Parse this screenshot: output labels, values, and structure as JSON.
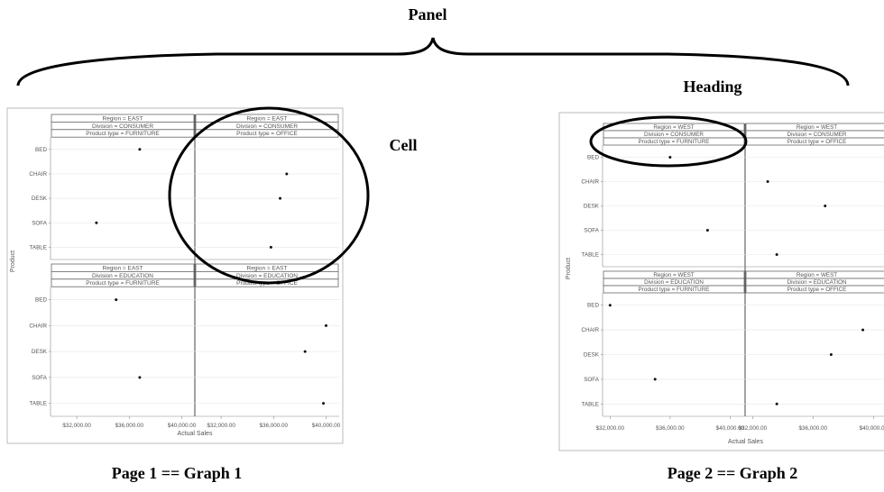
{
  "annotations": {
    "panel": "Panel",
    "heading": "Heading",
    "cell": "Cell",
    "caption1": "Page 1 == Graph 1",
    "caption2": "Page 2 == Graph 2"
  },
  "ylabel": "Product",
  "xlabel": "Actual Sales",
  "products": [
    "BED",
    "CHAIR",
    "DESK",
    "SOFA",
    "TABLE"
  ],
  "chart_data": [
    {
      "type": "scatter",
      "xlabel": "Actual Sales",
      "ylabel": "Product",
      "xticks": [
        "$32,000.00",
        "$36,000.00",
        "$40,000.00"
      ],
      "xlim": [
        30000,
        41000
      ],
      "cells": [
        {
          "header": [
            "Region = EAST",
            "Division = CONSUMER",
            "Product type = FURNITURE"
          ],
          "values": {
            "BED": 36800,
            "CHAIR": null,
            "DESK": null,
            "SOFA": 33500,
            "TABLE": null
          }
        },
        {
          "header": [
            "Region = EAST",
            "Division = CONSUMER",
            "Product type = OFFICE"
          ],
          "values": {
            "BED": null,
            "CHAIR": 37000,
            "DESK": 36500,
            "SOFA": null,
            "TABLE": 35800
          }
        },
        {
          "header": [
            "Region = EAST",
            "Division = EDUCATION",
            "Product type = FURNITURE"
          ],
          "values": {
            "BED": 35000,
            "CHAIR": null,
            "DESK": null,
            "SOFA": 36800,
            "TABLE": null
          }
        },
        {
          "header": [
            "Region = EAST",
            "Division = EDUCATION",
            "Product type = OFFICE"
          ],
          "values": {
            "BED": null,
            "CHAIR": 40000,
            "DESK": 38400,
            "SOFA": null,
            "TABLE": 39800
          }
        }
      ]
    },
    {
      "type": "scatter",
      "xlabel": "Actual Sales",
      "ylabel": "Product",
      "xticks": [
        "$32,000.00",
        "$36,000.00",
        "$40,000.00"
      ],
      "xlim": [
        31500,
        41000
      ],
      "cells": [
        {
          "header": [
            "Region = WEST",
            "Division = CONSUMER",
            "Product type = FURNITURE"
          ],
          "values": {
            "BED": 36000,
            "CHAIR": null,
            "DESK": null,
            "SOFA": 38500,
            "TABLE": null
          }
        },
        {
          "header": [
            "Region = WEST",
            "Division = CONSUMER",
            "Product type = OFFICE"
          ],
          "values": {
            "BED": null,
            "CHAIR": 33000,
            "DESK": 36800,
            "SOFA": null,
            "TABLE": 33600
          }
        },
        {
          "header": [
            "Region = WEST",
            "Division = EDUCATION",
            "Product type = FURNITURE"
          ],
          "values": {
            "BED": 32000,
            "CHAIR": null,
            "DESK": null,
            "SOFA": 35000,
            "TABLE": null
          }
        },
        {
          "header": [
            "Region = WEST",
            "Division = EDUCATION",
            "Product type = OFFICE"
          ],
          "values": {
            "BED": null,
            "CHAIR": 39300,
            "DESK": 37200,
            "SOFA": null,
            "TABLE": 33600
          }
        }
      ]
    }
  ]
}
